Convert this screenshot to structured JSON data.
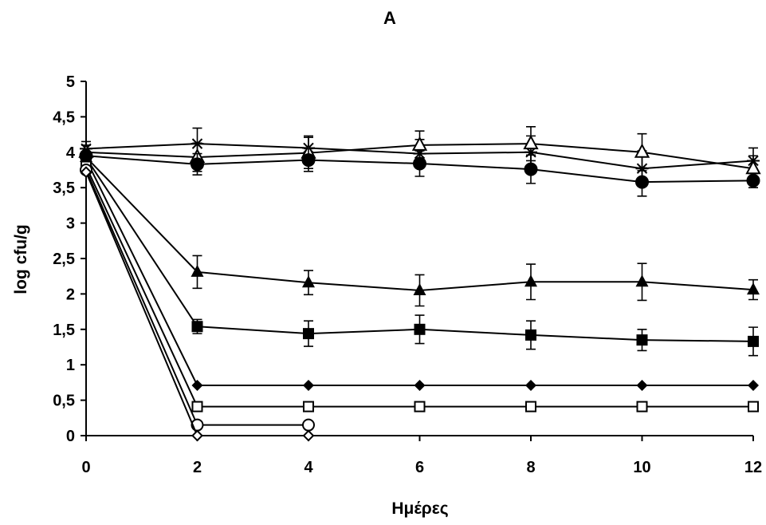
{
  "chart_data": {
    "type": "line",
    "title": "A",
    "xlabel": "Ημέρες",
    "ylabel": "log cfu/g",
    "xlim": [
      0,
      12
    ],
    "ylim": [
      0,
      5
    ],
    "x_ticks": [
      0,
      2,
      4,
      6,
      8,
      10,
      12
    ],
    "x_tick_labels": [
      "0",
      "2",
      "4",
      "6",
      "8",
      "10",
      "12"
    ],
    "y_ticks": [
      0,
      0.5,
      1,
      1.5,
      2,
      2.5,
      3,
      3.5,
      4,
      4.5,
      5
    ],
    "y_tick_labels": [
      "0",
      "0,5",
      "1",
      "1,5",
      "2",
      "2,5",
      "3",
      "3,5",
      "4",
      "4,5",
      "5"
    ],
    "grid": false,
    "legend": "none",
    "series": [
      {
        "marker": "star",
        "color": "#000000",
        "x": [
          0,
          2,
          4,
          6,
          8,
          10,
          12
        ],
        "y": [
          4.05,
          4.12,
          4.06,
          3.98,
          4.0,
          3.77,
          3.88
        ],
        "err": [
          0.1,
          0.22,
          0.17,
          0.2,
          0.23,
          0.25,
          0.18
        ]
      },
      {
        "marker": "triangle-open",
        "color": "#000000",
        "x": [
          0,
          2,
          4,
          6,
          8,
          10,
          12
        ],
        "y": [
          4.0,
          3.93,
          3.99,
          4.1,
          4.12,
          4.0,
          3.77
        ],
        "err": [
          0.1,
          0.2,
          0.22,
          0.2,
          0.24,
          0.26,
          0.18
        ]
      },
      {
        "marker": "circle-filled",
        "color": "#000000",
        "x": [
          0,
          2,
          4,
          6,
          8,
          10,
          12
        ],
        "y": [
          3.95,
          3.83,
          3.89,
          3.84,
          3.76,
          3.58,
          3.6
        ],
        "err": [
          0.1,
          0.15,
          0.16,
          0.18,
          0.2,
          0.2,
          0.1
        ]
      },
      {
        "marker": "triangle-filled",
        "color": "#000000",
        "x": [
          0,
          2,
          4,
          6,
          8,
          10,
          12
        ],
        "y": [
          3.93,
          2.31,
          2.16,
          2.05,
          2.17,
          2.17,
          2.06
        ],
        "err": [
          0.08,
          0.23,
          0.17,
          0.22,
          0.25,
          0.26,
          0.14
        ]
      },
      {
        "marker": "square-filled",
        "color": "#000000",
        "x": [
          0,
          2,
          4,
          6,
          8,
          10,
          12
        ],
        "y": [
          3.92,
          1.54,
          1.44,
          1.5,
          1.42,
          1.35,
          1.33
        ],
        "err": [
          0.08,
          0.1,
          0.18,
          0.2,
          0.2,
          0.15,
          0.2
        ]
      },
      {
        "marker": "diamond-filled",
        "color": "#000000",
        "x": [
          0,
          2,
          4,
          6,
          8,
          10,
          12
        ],
        "y": [
          3.9,
          0.71,
          0.71,
          0.71,
          0.71,
          0.71,
          0.71
        ],
        "err": [
          0,
          0,
          0,
          0,
          0,
          0,
          0
        ]
      },
      {
        "marker": "square-open",
        "color": "#000000",
        "x": [
          0,
          2,
          4,
          6,
          8,
          10,
          12
        ],
        "y": [
          3.8,
          0.41,
          0.41,
          0.41,
          0.41,
          0.41,
          0.41
        ],
        "err": [
          0,
          0,
          0,
          0,
          0,
          0,
          0
        ]
      },
      {
        "marker": "circle-open",
        "color": "#000000",
        "x": [
          0,
          2,
          4
        ],
        "y": [
          3.75,
          0.15,
          0.15
        ],
        "err": [
          0,
          0,
          0
        ]
      },
      {
        "marker": "diamond-open",
        "color": "#000000",
        "x": [
          0,
          2,
          4
        ],
        "y": [
          3.72,
          0.0,
          0.0
        ],
        "err": [
          0,
          0,
          0
        ]
      }
    ]
  }
}
